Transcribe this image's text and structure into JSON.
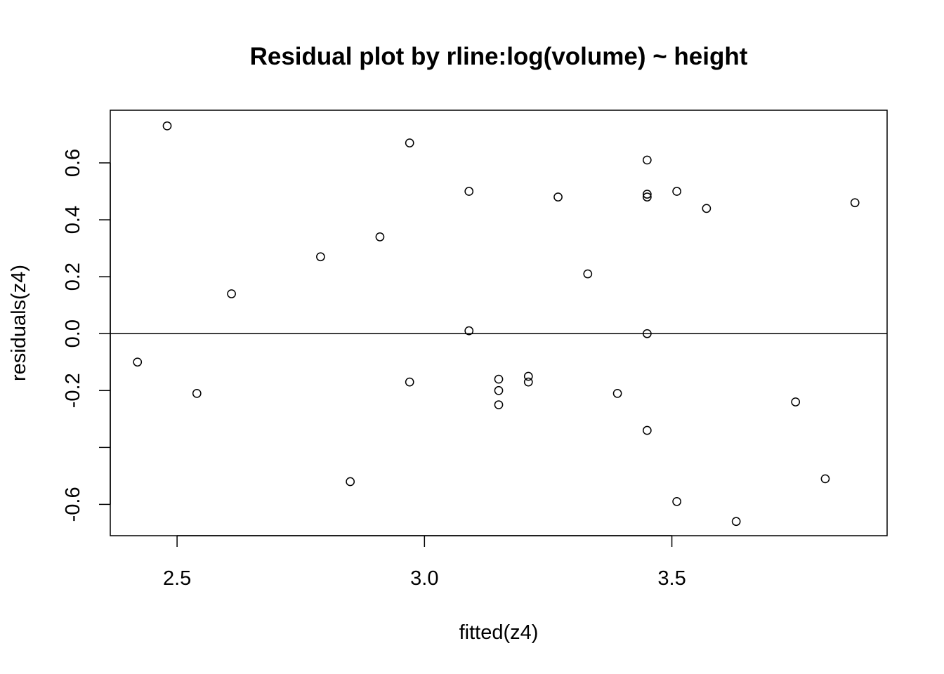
{
  "chart_data": {
    "type": "scatter",
    "title": "Residual plot by rline:log(volume) ~ height",
    "xlabel": "fitted(z4)",
    "ylabel": "residuals(z4)",
    "xlim": [
      2.365,
      3.935
    ],
    "ylim": [
      -0.71,
      0.785
    ],
    "x_ticks": [
      2.5,
      3.0,
      3.5
    ],
    "x_tick_labels": [
      "2.5",
      "3.0",
      "3.5"
    ],
    "y_ticks": [
      -0.6,
      -0.4,
      -0.2,
      0.0,
      0.2,
      0.4,
      0.6
    ],
    "y_tick_labels": [
      "-0.6",
      "",
      "-0.2",
      "0.0",
      "0.2",
      "0.4",
      "0.6"
    ],
    "reference_line": {
      "orientation": "horizontal",
      "y": 0
    },
    "grid": false,
    "marker": "open-circle",
    "points": [
      {
        "x": 2.42,
        "y": -0.1
      },
      {
        "x": 2.48,
        "y": 0.73
      },
      {
        "x": 2.54,
        "y": -0.21
      },
      {
        "x": 2.61,
        "y": 0.14
      },
      {
        "x": 2.79,
        "y": 0.27
      },
      {
        "x": 2.85,
        "y": -0.52
      },
      {
        "x": 2.91,
        "y": 0.34
      },
      {
        "x": 2.97,
        "y": 0.67
      },
      {
        "x": 2.97,
        "y": -0.17
      },
      {
        "x": 3.09,
        "y": 0.5
      },
      {
        "x": 3.09,
        "y": 0.01
      },
      {
        "x": 3.15,
        "y": -0.16
      },
      {
        "x": 3.15,
        "y": -0.2
      },
      {
        "x": 3.15,
        "y": -0.25
      },
      {
        "x": 3.21,
        "y": -0.15
      },
      {
        "x": 3.21,
        "y": -0.17
      },
      {
        "x": 3.27,
        "y": 0.48
      },
      {
        "x": 3.33,
        "y": 0.21
      },
      {
        "x": 3.39,
        "y": -0.21
      },
      {
        "x": 3.45,
        "y": 0.61
      },
      {
        "x": 3.45,
        "y": 0.49
      },
      {
        "x": 3.45,
        "y": 0.48
      },
      {
        "x": 3.45,
        "y": 0.0
      },
      {
        "x": 3.45,
        "y": -0.34
      },
      {
        "x": 3.51,
        "y": 0.5
      },
      {
        "x": 3.51,
        "y": -0.59
      },
      {
        "x": 3.57,
        "y": 0.44
      },
      {
        "x": 3.63,
        "y": -0.66
      },
      {
        "x": 3.75,
        "y": -0.24
      },
      {
        "x": 3.81,
        "y": -0.51
      },
      {
        "x": 3.87,
        "y": 0.46
      }
    ]
  }
}
